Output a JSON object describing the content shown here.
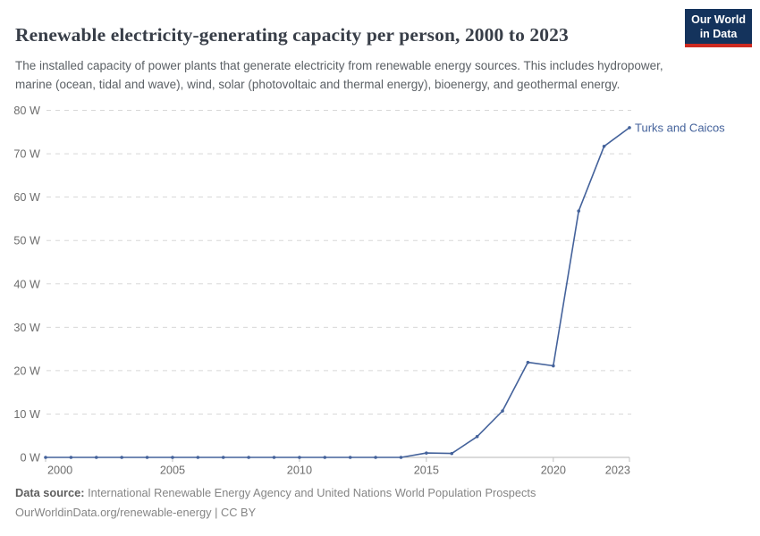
{
  "header": {
    "subtitle": "The installed capacity of power plants that generate electricity from renewable energy sources. This includes hydropower, marine (ocean, tidal and wave), wind, solar (photovoltaic and thermal energy), bioenergy, and geothermal energy.",
    "logo": {
      "line1": "Our World",
      "line2": "in Data"
    }
  },
  "chart_data": {
    "type": "line",
    "title": "Renewable electricity-generating capacity per person, 2000 to 2023",
    "x": [
      2000,
      2001,
      2002,
      2003,
      2004,
      2005,
      2006,
      2007,
      2008,
      2009,
      2010,
      2011,
      2012,
      2013,
      2014,
      2015,
      2016,
      2017,
      2018,
      2019,
      2020,
      2021,
      2022,
      2023
    ],
    "series": [
      {
        "name": "Turks and Caicos",
        "color": "#44629b",
        "values": [
          0,
          0,
          0,
          0,
          0,
          0,
          0,
          0,
          0,
          0,
          0,
          0,
          0,
          0,
          0,
          1,
          0.9,
          4.8,
          10.7,
          21.9,
          21.1,
          56.8,
          71.7,
          76
        ]
      }
    ],
    "xlabel": "",
    "ylabel": "",
    "y_unit": "W",
    "xlim": [
      2000,
      2023
    ],
    "ylim": [
      0,
      80
    ],
    "yticks": [
      0,
      10,
      20,
      30,
      40,
      50,
      60,
      70,
      80
    ],
    "xticks": [
      2000,
      2005,
      2010,
      2015,
      2020,
      2023
    ],
    "grid": "horizontal-dashed",
    "legend_position": "end-of-line-label"
  },
  "footer": {
    "source_label": "Data source:",
    "source_text": " International Renewable Energy Agency and United Nations World Population Prospects",
    "url": "OurWorldinData.org/renewable-energy",
    "separator": " | ",
    "license": "CC BY"
  },
  "colors": {
    "line": "#44629b",
    "grid": "#d8d8d8",
    "axis": "#b4b4b4",
    "tick_label": "#6d6d6d",
    "logo_bg": "#14335c",
    "logo_red": "#cd2a20"
  }
}
